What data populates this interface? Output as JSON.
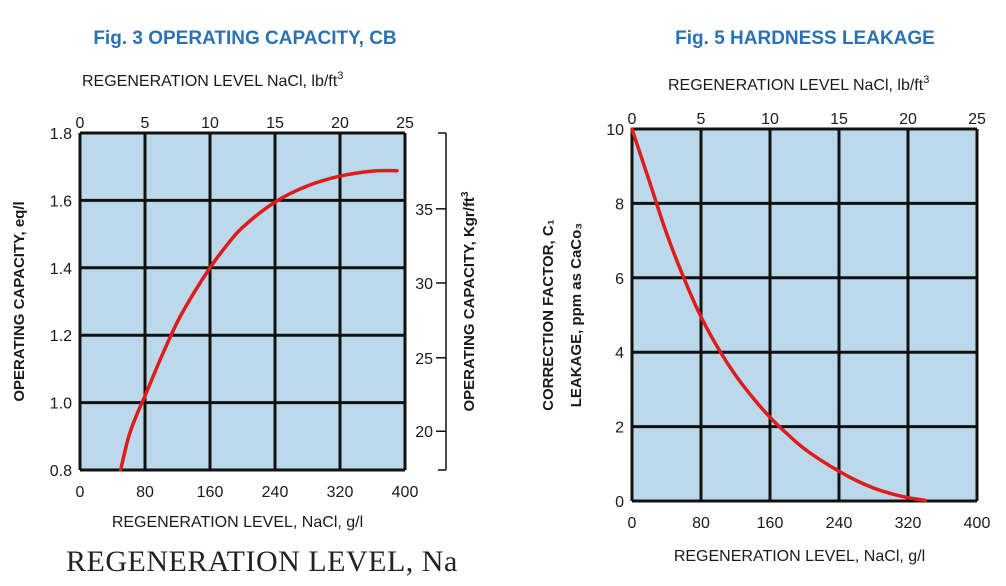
{
  "colors": {
    "title": "#2a72b5",
    "plot_bg": "#bcd9ec",
    "grid": "#111111",
    "curve": "#e01b1b"
  },
  "footer_text": "REGENERATION LEVEL, Na",
  "chart_data": [
    {
      "type": "line",
      "title": "Fig. 3 OPERATING CAPACITY, CB",
      "top_axis_label": "REGENERATION LEVEL  NaCl, lb/ft",
      "top_axis_sup": "3",
      "top_ticks": [
        "0",
        "5",
        "10",
        "15",
        "20",
        "25"
      ],
      "xlabel": "REGENERATION LEVEL, NaCl, g/l",
      "x_ticks": [
        "0",
        "80",
        "160",
        "240",
        "320",
        "400"
      ],
      "xlim": [
        0,
        400
      ],
      "ylabel": "OPERATING CAPACITY, eq/l",
      "y_ticks": [
        "0.8",
        "1.0",
        "1.2",
        "1.4",
        "1.6",
        "1.8"
      ],
      "ylim": [
        0.8,
        1.8
      ],
      "ylabel_right": "OPERATING CAPACITY, Kgr/ft",
      "ylabel_right_sup": "3",
      "y_right_ticks": [
        {
          "label": "20",
          "y": 0.915
        },
        {
          "label": "25",
          "y": 1.133
        },
        {
          "label": "30",
          "y": 1.355
        },
        {
          "label": "35",
          "y": 1.575
        }
      ],
      "grid": true,
      "series": [
        {
          "x": [
            50,
            60,
            70,
            80,
            100,
            120,
            140,
            160,
            180,
            200,
            240,
            280,
            320,
            360,
            390
          ],
          "y": [
            0.8,
            0.9,
            0.965,
            1.02,
            1.135,
            1.24,
            1.325,
            1.4,
            1.465,
            1.52,
            1.595,
            1.643,
            1.672,
            1.687,
            1.688
          ]
        }
      ]
    },
    {
      "type": "line",
      "title": "Fig. 5 HARDNESS LEAKAGE",
      "top_axis_label": "REGENERATION LEVEL  NaCl, lb/ft",
      "top_axis_sup": "3",
      "top_ticks": [
        "0",
        "5",
        "10",
        "15",
        "20",
        "25"
      ],
      "xlabel": "REGENERATION LEVEL, NaCl, g/l",
      "x_ticks": [
        "0",
        "80",
        "160",
        "240",
        "320",
        "400"
      ],
      "xlim": [
        0,
        400
      ],
      "ylabel": "CORRECTION FACTOR, C₁",
      "ylabel2": "LEAKAGE, ppm as CaCo₃",
      "y_ticks": [
        "0",
        "2",
        "4",
        "6",
        "8",
        "10"
      ],
      "ylim": [
        0,
        10
      ],
      "grid": true,
      "series": [
        {
          "x": [
            0,
            20,
            40,
            60,
            80,
            100,
            120,
            140,
            160,
            180,
            200,
            220,
            240,
            260,
            280,
            300,
            320,
            340
          ],
          "y": [
            10,
            8.6,
            7.2,
            6.0,
            4.95,
            4.1,
            3.38,
            2.78,
            2.25,
            1.8,
            1.4,
            1.08,
            0.8,
            0.55,
            0.35,
            0.2,
            0.09,
            0.02
          ]
        }
      ]
    }
  ]
}
